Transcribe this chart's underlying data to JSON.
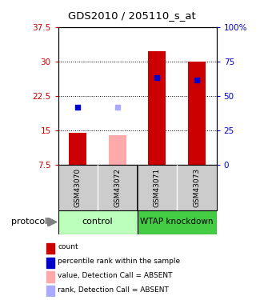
{
  "title": "GDS2010 / 205110_s_at",
  "samples": [
    "GSM43070",
    "GSM43072",
    "GSM43071",
    "GSM43073"
  ],
  "ylim_left": [
    7.5,
    37.5
  ],
  "yticks_left": [
    7.5,
    15.0,
    22.5,
    30.0,
    37.5
  ],
  "ytick_labels_left": [
    "7.5",
    "15",
    "22.5",
    "30",
    "37.5"
  ],
  "ytick_labels_right": [
    "0",
    "25",
    "50",
    "75",
    "100%"
  ],
  "bar_bottoms": [
    7.5,
    7.5,
    7.5,
    7.5
  ],
  "bar_tops_red": [
    14.5,
    null,
    32.2,
    30.0
  ],
  "bar_tops_pink": [
    null,
    14.0,
    null,
    null
  ],
  "dot_blue_y": [
    20.0,
    null,
    26.5,
    26.0
  ],
  "dot_lightblue_y": [
    null,
    20.0,
    null,
    null
  ],
  "bar_color_red": "#cc0000",
  "bar_color_pink": "#ffaaaa",
  "dot_color_blue": "#0000cc",
  "dot_color_lightblue": "#aaaaff",
  "bg_color": "#ffffff",
  "sample_bg": "#cccccc",
  "group1_color": "#bbffbb",
  "group2_color": "#44cc44",
  "legend_items": [
    {
      "color": "#cc0000",
      "label": "count"
    },
    {
      "color": "#0000cc",
      "label": "percentile rank within the sample"
    },
    {
      "color": "#ffaaaa",
      "label": "value, Detection Call = ABSENT"
    },
    {
      "color": "#aaaaff",
      "label": "rank, Detection Call = ABSENT"
    }
  ],
  "protocol_label": "protocol"
}
